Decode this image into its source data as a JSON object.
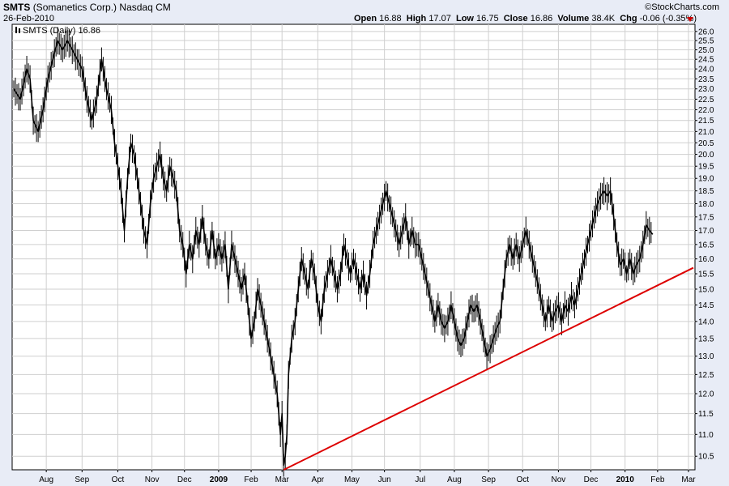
{
  "header": {
    "symbol": "SMTS",
    "company": "(Somanetics Corp.)",
    "exchange": "Nasdaq CM",
    "date": "26-Feb-2010",
    "brand": "©StockCharts.com",
    "open_label": "Open",
    "open": "16.88",
    "high_label": "High",
    "high": "17.07",
    "low_label": "Low",
    "low": "16.75",
    "close_label": "Close",
    "close": "16.86",
    "volume_label": "Volume",
    "volume": "38.4K",
    "chg_label": "Chg",
    "chg": "-0.06 (-0.35%)",
    "chg_color": "#cc0000"
  },
  "chart_data": {
    "type": "line",
    "legend_label": "SMTS (Daily) 16.86",
    "legend_position": "top-left",
    "price_color": "#000000",
    "trendline_color": "#dd0000",
    "grid": true,
    "yscale": "log",
    "ylim": [
      10.2,
      26.4
    ],
    "y_ticks": [
      10.5,
      11.0,
      11.5,
      12.0,
      12.5,
      13.0,
      13.5,
      14.0,
      14.5,
      15.0,
      15.5,
      16.0,
      16.5,
      17.0,
      17.5,
      18.0,
      18.5,
      19.0,
      19.5,
      20.0,
      20.5,
      21.0,
      21.5,
      22.0,
      22.5,
      23.0,
      23.5,
      24.0,
      24.5,
      25.0,
      25.5,
      26.0
    ],
    "x_months": [
      {
        "label": "Aug",
        "idx": 20,
        "bold": false
      },
      {
        "label": "Sep",
        "idx": 42,
        "bold": false
      },
      {
        "label": "Oct",
        "idx": 64,
        "bold": false
      },
      {
        "label": "Nov",
        "idx": 85,
        "bold": false
      },
      {
        "label": "Dec",
        "idx": 105,
        "bold": false
      },
      {
        "label": "2009",
        "idx": 126,
        "bold": true
      },
      {
        "label": "Feb",
        "idx": 146,
        "bold": false
      },
      {
        "label": "Mar",
        "idx": 165,
        "bold": false
      },
      {
        "label": "Apr",
        "idx": 187,
        "bold": false
      },
      {
        "label": "May",
        "idx": 208,
        "bold": false
      },
      {
        "label": "Jun",
        "idx": 228,
        "bold": false
      },
      {
        "label": "Jul",
        "idx": 250,
        "bold": false
      },
      {
        "label": "Aug",
        "idx": 271,
        "bold": false
      },
      {
        "label": "Sep",
        "idx": 292,
        "bold": false
      },
      {
        "label": "Oct",
        "idx": 313,
        "bold": false
      },
      {
        "label": "Nov",
        "idx": 335,
        "bold": false
      },
      {
        "label": "Dec",
        "idx": 355,
        "bold": false
      },
      {
        "label": "2010",
        "idx": 376,
        "bold": true
      },
      {
        "label": "Feb",
        "idx": 396,
        "bold": false
      },
      {
        "label": "Mar",
        "idx": 415,
        "bold": false
      }
    ],
    "x_range": [
      0,
      418
    ],
    "series": [
      {
        "close_path": [
          [
            0,
            23.0
          ],
          [
            4,
            22.5
          ],
          [
            8,
            24.0
          ],
          [
            10,
            23.5
          ],
          [
            12,
            21.5
          ],
          [
            15,
            21.0
          ],
          [
            18,
            22.0
          ],
          [
            21,
            23.5
          ],
          [
            24,
            24.5
          ],
          [
            27,
            25.5
          ],
          [
            30,
            25.0
          ],
          [
            33,
            25.5
          ],
          [
            36,
            25.0
          ],
          [
            39,
            24.5
          ],
          [
            42,
            24.0
          ],
          [
            45,
            22.5
          ],
          [
            48,
            21.5
          ],
          [
            51,
            22.5
          ],
          [
            54,
            24.5
          ],
          [
            57,
            23.0
          ],
          [
            60,
            22.0
          ],
          [
            62,
            20.5
          ],
          [
            64,
            19.5
          ],
          [
            66,
            18.5
          ],
          [
            68,
            17.0
          ],
          [
            70,
            19.0
          ],
          [
            72,
            20.5
          ],
          [
            74,
            20.0
          ],
          [
            76,
            19.0
          ],
          [
            78,
            18.0
          ],
          [
            80,
            17.0
          ],
          [
            82,
            16.5
          ],
          [
            84,
            18.0
          ],
          [
            86,
            19.0
          ],
          [
            88,
            19.5
          ],
          [
            90,
            20.0
          ],
          [
            92,
            19.0
          ],
          [
            94,
            18.5
          ],
          [
            96,
            19.5
          ],
          [
            98,
            19.0
          ],
          [
            100,
            18.5
          ],
          [
            102,
            17.0
          ],
          [
            104,
            16.5
          ],
          [
            106,
            15.5
          ],
          [
            108,
            16.5
          ],
          [
            110,
            16.0
          ],
          [
            112,
            17.0
          ],
          [
            114,
            16.5
          ],
          [
            116,
            17.5
          ],
          [
            118,
            16.5
          ],
          [
            120,
            16.0
          ],
          [
            122,
            17.0
          ],
          [
            124,
            16.0
          ],
          [
            126,
            16.5
          ],
          [
            128,
            16.0
          ],
          [
            130,
            16.5
          ],
          [
            132,
            15.0
          ],
          [
            134,
            16.5
          ],
          [
            136,
            16.0
          ],
          [
            138,
            15.5
          ],
          [
            140,
            15.0
          ],
          [
            142,
            15.5
          ],
          [
            144,
            14.5
          ],
          [
            146,
            13.5
          ],
          [
            148,
            14.0
          ],
          [
            150,
            15.0
          ],
          [
            152,
            14.5
          ],
          [
            154,
            14.0
          ],
          [
            156,
            13.5
          ],
          [
            158,
            13.0
          ],
          [
            160,
            12.5
          ],
          [
            162,
            12.0
          ],
          [
            164,
            11.0
          ],
          [
            165,
            11.5
          ],
          [
            166,
            10.3
          ],
          [
            167,
            10.5
          ],
          [
            168,
            11.0
          ],
          [
            169,
            12.5
          ],
          [
            171,
            13.5
          ],
          [
            173,
            14.0
          ],
          [
            175,
            15.0
          ],
          [
            177,
            16.0
          ],
          [
            179,
            15.5
          ],
          [
            181,
            15.0
          ],
          [
            183,
            16.0
          ],
          [
            185,
            15.5
          ],
          [
            187,
            14.5
          ],
          [
            189,
            14.0
          ],
          [
            191,
            15.0
          ],
          [
            193,
            15.5
          ],
          [
            195,
            16.0
          ],
          [
            197,
            15.5
          ],
          [
            199,
            15.0
          ],
          [
            201,
            15.5
          ],
          [
            203,
            16.5
          ],
          [
            205,
            16.0
          ],
          [
            207,
            15.5
          ],
          [
            209,
            16.0
          ],
          [
            211,
            15.5
          ],
          [
            213,
            15.0
          ],
          [
            215,
            15.5
          ],
          [
            217,
            14.8
          ],
          [
            219,
            15.5
          ],
          [
            221,
            16.5
          ],
          [
            223,
            17.0
          ],
          [
            225,
            17.5
          ],
          [
            227,
            18.0
          ],
          [
            229,
            18.5
          ],
          [
            231,
            18.0
          ],
          [
            233,
            17.5
          ],
          [
            235,
            17.0
          ],
          [
            237,
            16.5
          ],
          [
            239,
            17.0
          ],
          [
            241,
            17.5
          ],
          [
            243,
            16.5
          ],
          [
            245,
            17.0
          ],
          [
            247,
            16.5
          ],
          [
            249,
            16.5
          ],
          [
            251,
            16.0
          ],
          [
            253,
            15.5
          ],
          [
            255,
            15.0
          ],
          [
            257,
            14.5
          ],
          [
            259,
            14.0
          ],
          [
            261,
            14.5
          ],
          [
            263,
            14.0
          ],
          [
            265,
            13.8
          ],
          [
            267,
            14.0
          ],
          [
            269,
            14.5
          ],
          [
            271,
            14.0
          ],
          [
            273,
            13.5
          ],
          [
            275,
            13.3
          ],
          [
            277,
            13.5
          ],
          [
            279,
            14.0
          ],
          [
            281,
            14.5
          ],
          [
            283,
            14.3
          ],
          [
            285,
            14.5
          ],
          [
            287,
            14.0
          ],
          [
            289,
            13.5
          ],
          [
            291,
            13.0
          ],
          [
            293,
            13.2
          ],
          [
            295,
            13.5
          ],
          [
            297,
            13.8
          ],
          [
            299,
            14.0
          ],
          [
            301,
            15.0
          ],
          [
            303,
            16.0
          ],
          [
            305,
            16.5
          ],
          [
            307,
            16.0
          ],
          [
            309,
            16.5
          ],
          [
            311,
            16.0
          ],
          [
            313,
            16.5
          ],
          [
            315,
            17.0
          ],
          [
            317,
            16.5
          ],
          [
            319,
            16.0
          ],
          [
            321,
            15.5
          ],
          [
            323,
            15.0
          ],
          [
            325,
            14.5
          ],
          [
            327,
            14.0
          ],
          [
            329,
            14.5
          ],
          [
            331,
            14.0
          ],
          [
            333,
            14.3
          ],
          [
            335,
            14.5
          ],
          [
            337,
            14.0
          ],
          [
            339,
            14.5
          ],
          [
            341,
            14.3
          ],
          [
            343,
            14.8
          ],
          [
            345,
            14.5
          ],
          [
            347,
            15.0
          ],
          [
            349,
            15.5
          ],
          [
            351,
            16.0
          ],
          [
            353,
            16.5
          ],
          [
            355,
            17.0
          ],
          [
            357,
            17.5
          ],
          [
            359,
            18.0
          ],
          [
            361,
            18.3
          ],
          [
            363,
            18.5
          ],
          [
            365,
            18.3
          ],
          [
            367,
            18.5
          ],
          [
            369,
            17.5
          ],
          [
            371,
            16.5
          ],
          [
            373,
            15.8
          ],
          [
            375,
            16.0
          ],
          [
            377,
            15.5
          ],
          [
            379,
            16.0
          ],
          [
            381,
            15.5
          ],
          [
            383,
            15.8
          ],
          [
            385,
            16.0
          ],
          [
            387,
            16.5
          ],
          [
            389,
            17.2
          ],
          [
            391,
            17.0
          ],
          [
            393,
            16.86
          ]
        ]
      }
    ],
    "trendline": [
      [
        166,
        10.2
      ],
      [
        418,
        15.7
      ]
    ]
  }
}
